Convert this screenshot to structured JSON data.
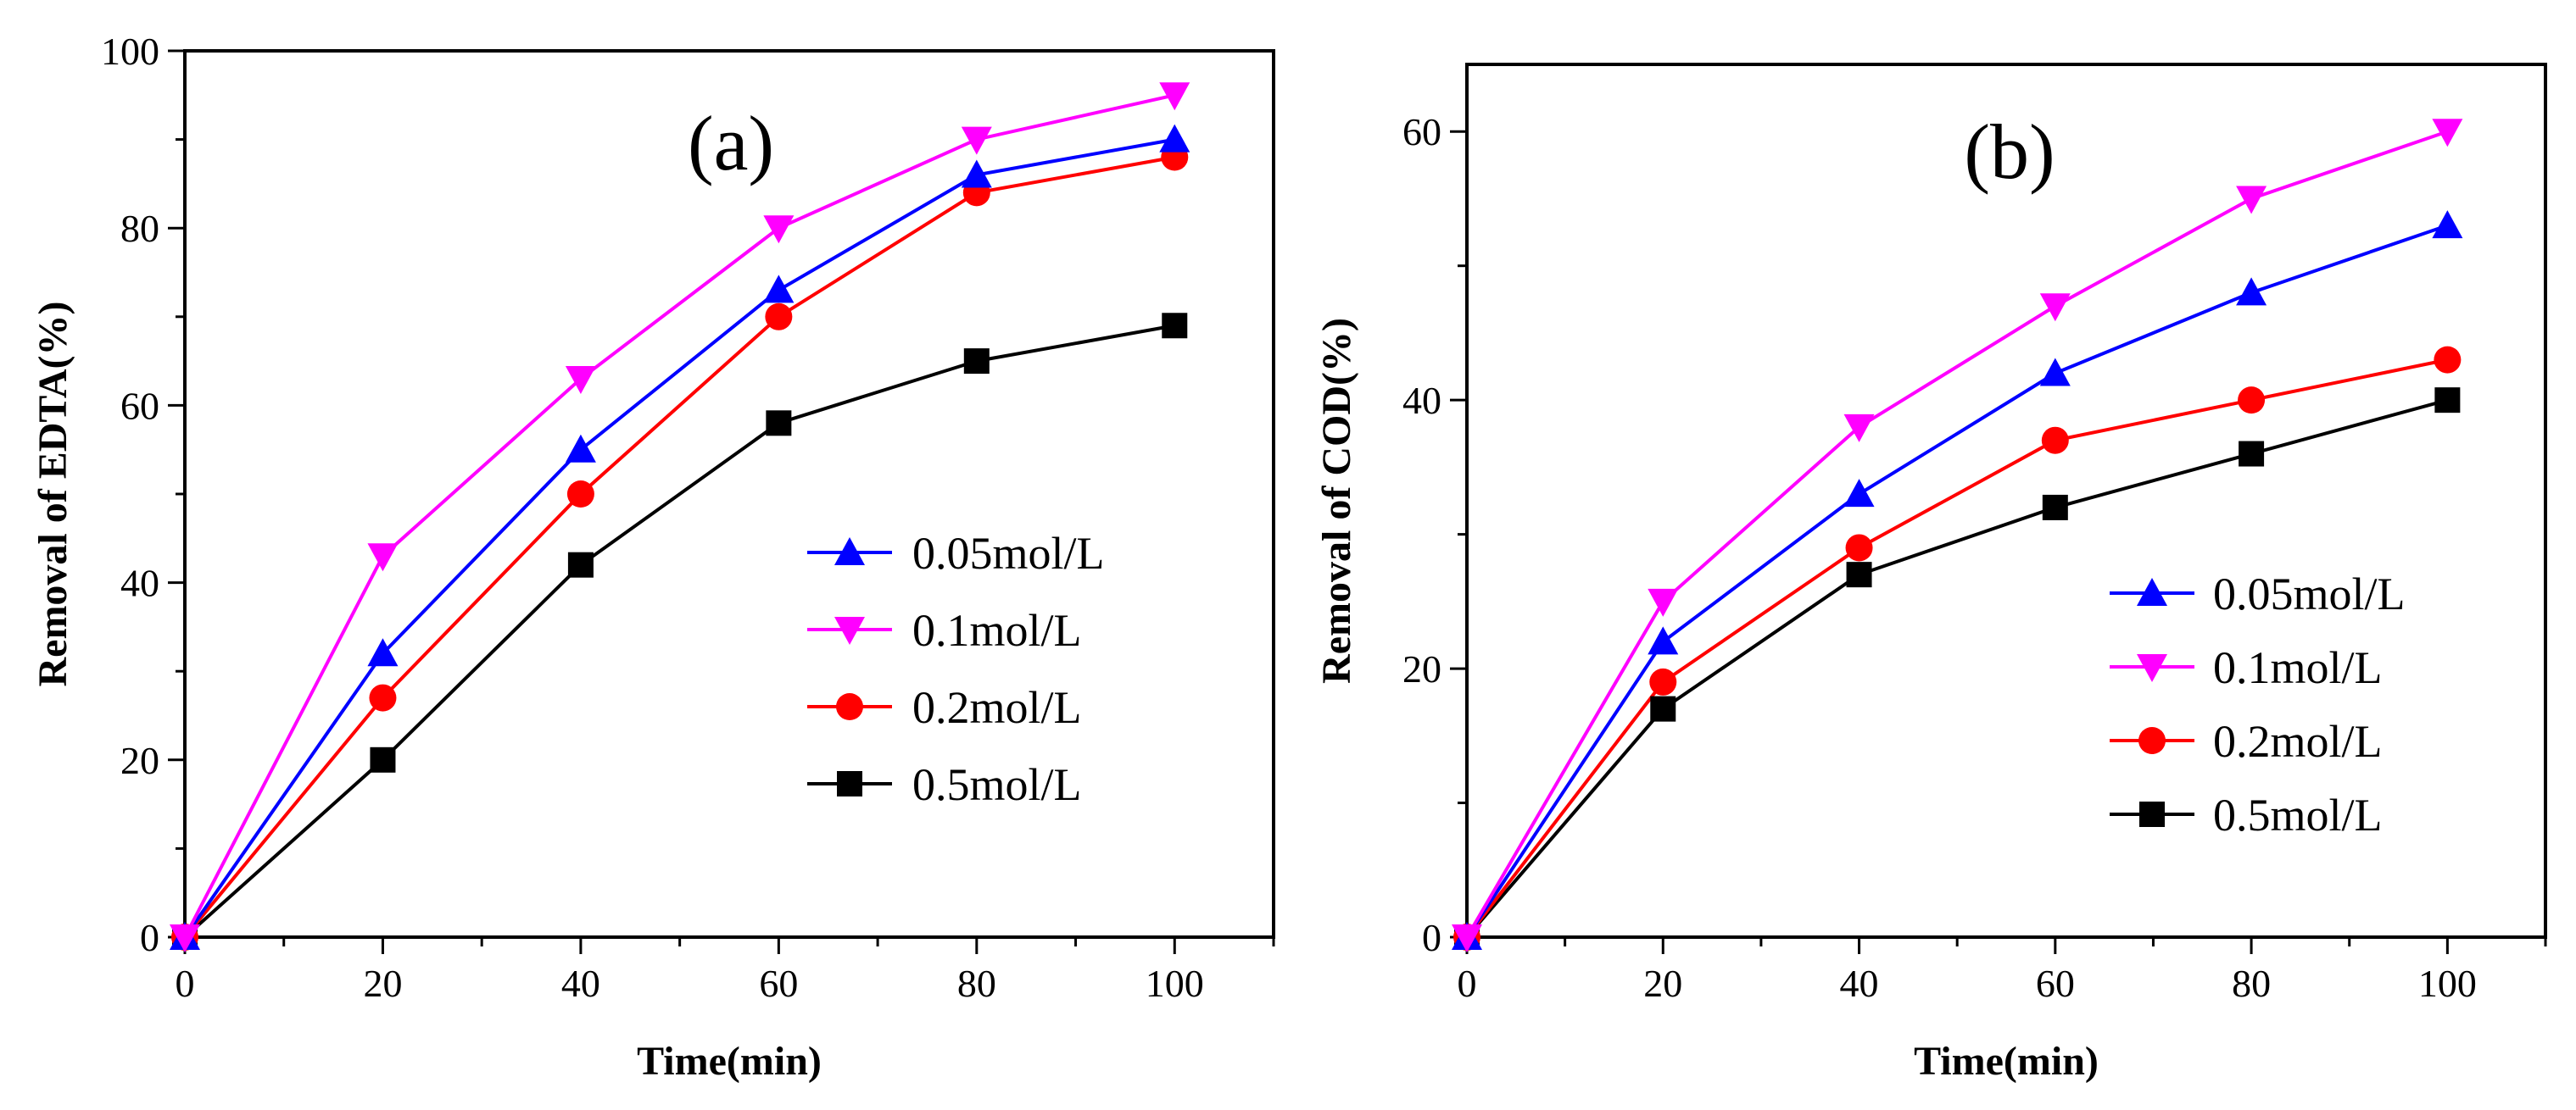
{
  "chart_data": [
    {
      "type": "line",
      "panel_label": "(a)",
      "xlabel": "Time(min)",
      "ylabel": "Removal of EDTA(%)",
      "xlim": [
        0,
        110
      ],
      "ylim": [
        0,
        100
      ],
      "xticks": [
        0,
        20,
        40,
        60,
        80,
        100
      ],
      "yticks": [
        0,
        20,
        40,
        60,
        80,
        100
      ],
      "x": [
        0,
        20,
        40,
        60,
        80,
        100
      ],
      "legend_position": "lower-right",
      "series": [
        {
          "name": "0.05mol/L",
          "color": "#0000ff",
          "marker": "triangle-up",
          "values": [
            0,
            32,
            55,
            73,
            86,
            90
          ]
        },
        {
          "name": "0.1mol/L",
          "color": "#ff00ff",
          "marker": "triangle-down",
          "values": [
            0,
            43,
            63,
            80,
            90,
            95
          ]
        },
        {
          "name": "0.2mol/L",
          "color": "#ff0000",
          "marker": "circle",
          "values": [
            0,
            27,
            50,
            70,
            84,
            88
          ]
        },
        {
          "name": "0.5mol/L",
          "color": "#000000",
          "marker": "square",
          "values": [
            0,
            20,
            42,
            58,
            65,
            69
          ]
        }
      ]
    },
    {
      "type": "line",
      "panel_label": "(b)",
      "xlabel": "Time(min)",
      "ylabel": "Removal of COD(%)",
      "xlim": [
        0,
        110
      ],
      "ylim": [
        0,
        65
      ],
      "xticks": [
        0,
        20,
        40,
        60,
        80,
        100
      ],
      "yticks": [
        0,
        20,
        40,
        60
      ],
      "x": [
        0,
        20,
        40,
        60,
        80,
        100
      ],
      "legend_position": "lower-right",
      "series": [
        {
          "name": "0.05mol/L",
          "color": "#0000ff",
          "marker": "triangle-up",
          "values": [
            0,
            22,
            33,
            42,
            48,
            53
          ]
        },
        {
          "name": "0.1mol/L",
          "color": "#ff00ff",
          "marker": "triangle-down",
          "values": [
            0,
            25,
            38,
            47,
            55,
            60
          ]
        },
        {
          "name": "0.2mol/L",
          "color": "#ff0000",
          "marker": "circle",
          "values": [
            0,
            19,
            29,
            37,
            40,
            43
          ]
        },
        {
          "name": "0.5mol/L",
          "color": "#000000",
          "marker": "square",
          "values": [
            0,
            17,
            27,
            32,
            36,
            40
          ]
        }
      ]
    }
  ]
}
